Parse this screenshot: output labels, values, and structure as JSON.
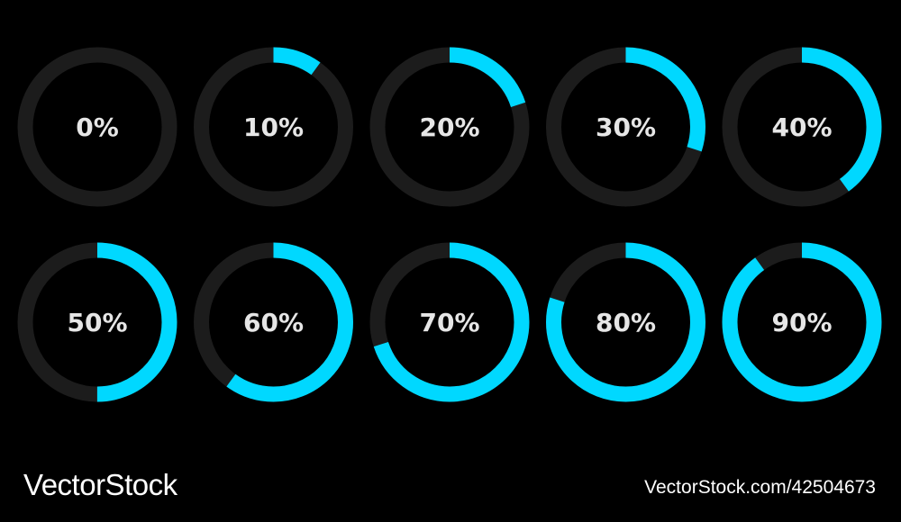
{
  "colors": {
    "background": "#000000",
    "track": "#1c1c1c",
    "progress": "#00d8ff",
    "label": "#e6e6e6"
  },
  "progress_rings": [
    {
      "label": "0%",
      "value": 0
    },
    {
      "label": "10%",
      "value": 10
    },
    {
      "label": "20%",
      "value": 20
    },
    {
      "label": "30%",
      "value": 30
    },
    {
      "label": "40%",
      "value": 40
    },
    {
      "label": "50%",
      "value": 50
    },
    {
      "label": "60%",
      "value": 60
    },
    {
      "label": "70%",
      "value": 70
    },
    {
      "label": "80%",
      "value": 80
    },
    {
      "label": "90%",
      "value": 90
    }
  ],
  "watermark": {
    "brand": "VectorStock",
    "reference": "VectorStock.com/42504673"
  }
}
